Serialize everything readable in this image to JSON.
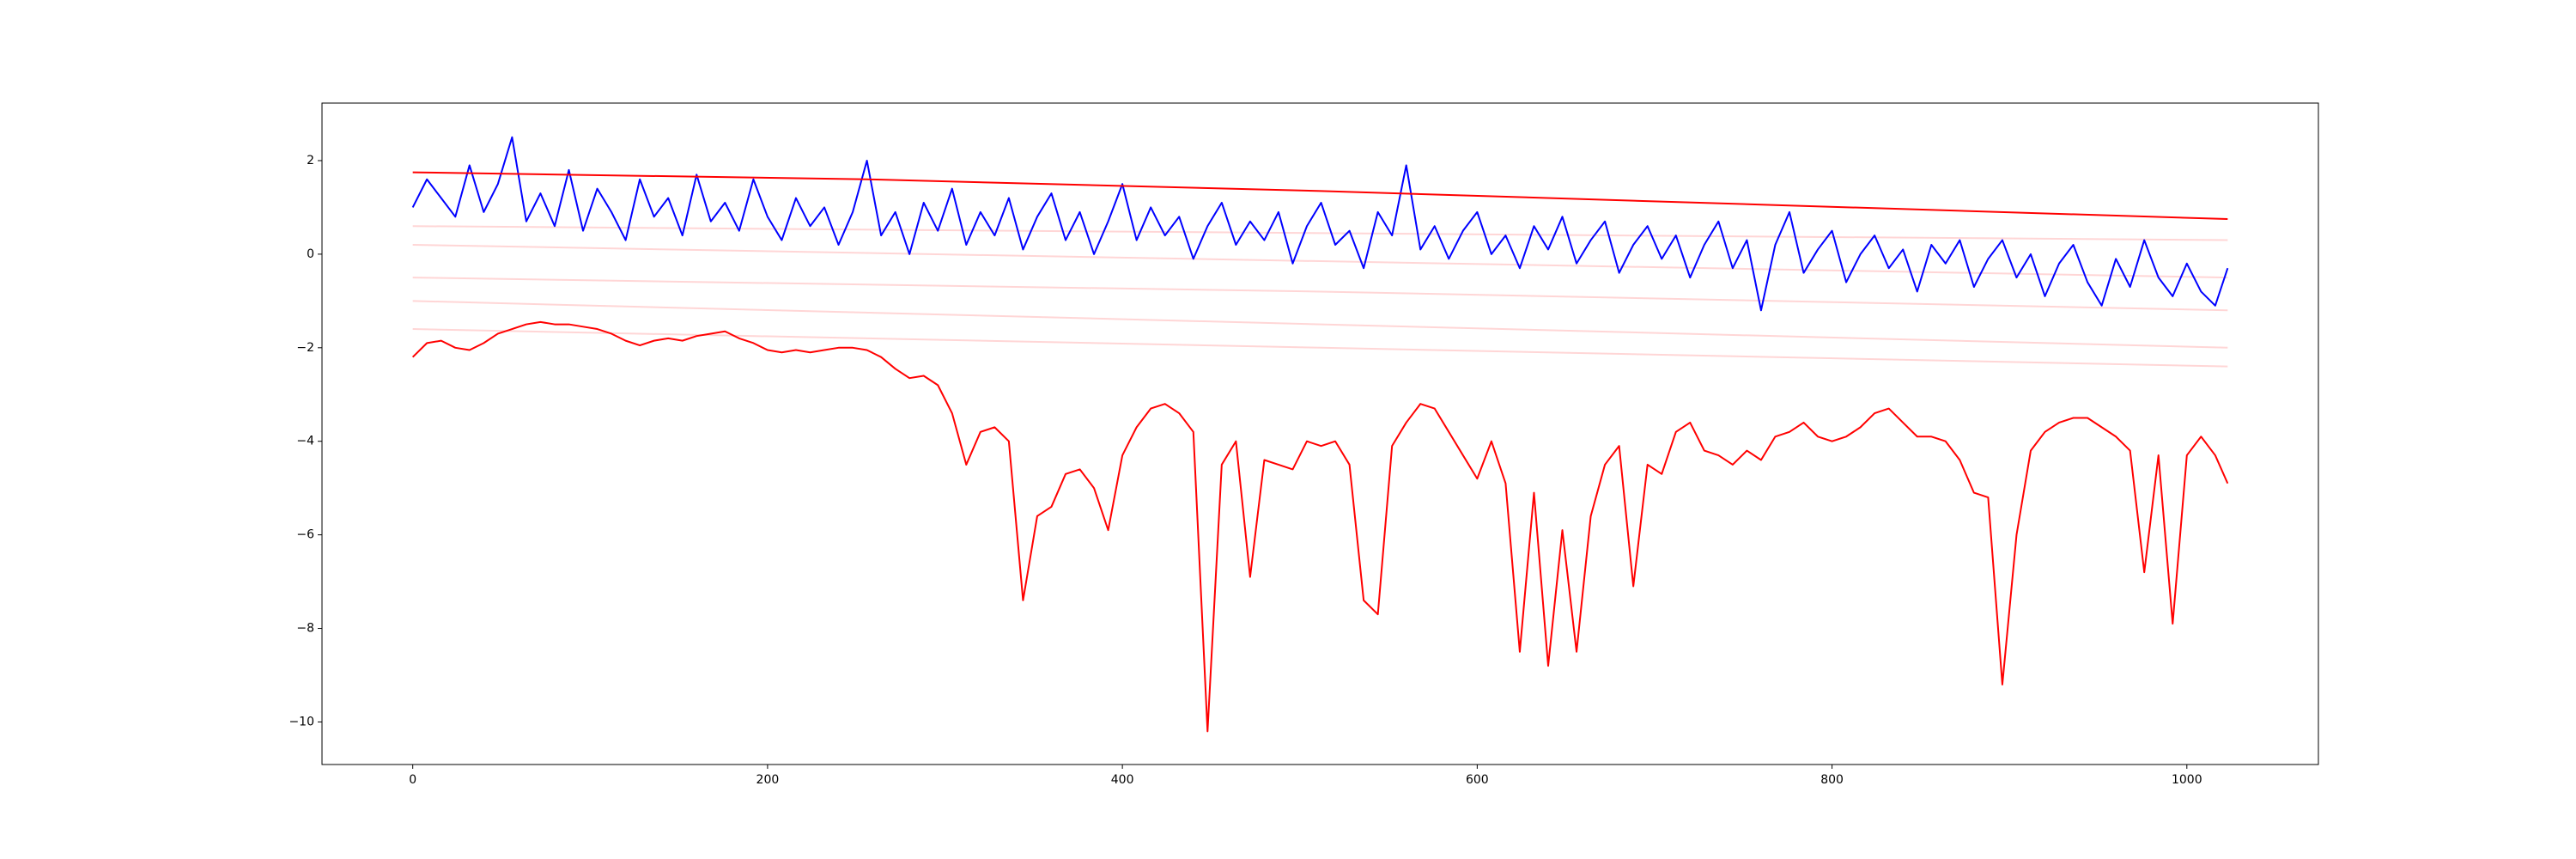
{
  "chart_data": {
    "type": "line",
    "xlim": [
      -51.15,
      1074.15
    ],
    "ylim": [
      -10.91,
      3.23
    ],
    "xticks": [
      0,
      200,
      400,
      600,
      800,
      1000
    ],
    "yticks": [
      {
        "value": -10,
        "label": "−10"
      },
      {
        "value": -8,
        "label": "−8"
      },
      {
        "value": -6,
        "label": "−6"
      },
      {
        "value": -4,
        "label": "−4"
      },
      {
        "value": -2,
        "label": "−2"
      },
      0,
      2
    ],
    "x": [
      0,
      8,
      16,
      24,
      32,
      40,
      48,
      56,
      64,
      72,
      80,
      88,
      96,
      104,
      112,
      120,
      128,
      136,
      144,
      152,
      160,
      168,
      176,
      184,
      192,
      200,
      208,
      216,
      224,
      232,
      240,
      248,
      256,
      264,
      272,
      280,
      288,
      296,
      304,
      312,
      320,
      328,
      336,
      344,
      352,
      360,
      368,
      376,
      384,
      392,
      400,
      408,
      416,
      424,
      432,
      440,
      448,
      456,
      464,
      472,
      480,
      488,
      496,
      504,
      512,
      520,
      528,
      536,
      544,
      552,
      560,
      568,
      576,
      584,
      592,
      600,
      608,
      616,
      624,
      632,
      640,
      648,
      656,
      664,
      672,
      680,
      688,
      696,
      704,
      712,
      720,
      728,
      736,
      744,
      752,
      760,
      768,
      776,
      784,
      792,
      800,
      808,
      816,
      824,
      832,
      840,
      848,
      856,
      864,
      872,
      880,
      888,
      896,
      904,
      912,
      920,
      928,
      936,
      944,
      952,
      960,
      968,
      976,
      984,
      992,
      1000,
      1008,
      1016,
      1023
    ],
    "series": [
      {
        "color": "#ffd6d6",
        "x": [
          0,
          512,
          1023
        ],
        "values": [
          0.6,
          0.45,
          0.3
        ]
      },
      {
        "color": "#ffd6d6",
        "x": [
          0,
          512,
          1023
        ],
        "values": [
          0.2,
          -0.15,
          -0.5
        ]
      },
      {
        "color": "#ffd6d6",
        "x": [
          0,
          512,
          1023
        ],
        "values": [
          -0.5,
          -0.8,
          -1.2
        ]
      },
      {
        "color": "#ffd6d6",
        "x": [
          0,
          512,
          1023
        ],
        "values": [
          -1.0,
          -1.5,
          -2.0
        ]
      },
      {
        "color": "#ffd6d6",
        "x": [
          0,
          512,
          1023
        ],
        "values": [
          -1.6,
          -2.0,
          -2.4
        ]
      },
      {
        "color": "#0000ff",
        "values": [
          1.0,
          1.6,
          1.2,
          0.8,
          1.9,
          0.9,
          1.5,
          2.5,
          0.7,
          1.3,
          0.6,
          1.8,
          0.5,
          1.4,
          0.9,
          0.3,
          1.6,
          0.8,
          1.2,
          0.4,
          1.7,
          0.7,
          1.1,
          0.5,
          1.6,
          0.8,
          0.3,
          1.2,
          0.6,
          1.0,
          0.2,
          0.9,
          2.0,
          0.4,
          0.9,
          0.0,
          1.1,
          0.5,
          1.4,
          0.2,
          0.9,
          0.4,
          1.2,
          0.1,
          0.8,
          1.3,
          0.3,
          0.9,
          0.0,
          0.7,
          1.5,
          0.3,
          1.0,
          0.4,
          0.8,
          -0.1,
          0.6,
          1.1,
          0.2,
          0.7,
          0.3,
          0.9,
          -0.2,
          0.6,
          1.1,
          0.2,
          0.5,
          -0.3,
          0.9,
          0.4,
          1.9,
          0.1,
          0.6,
          -0.1,
          0.5,
          0.9,
          0.0,
          0.4,
          -0.3,
          0.6,
          0.1,
          0.8,
          -0.2,
          0.3,
          0.7,
          -0.4,
          0.2,
          0.6,
          -0.1,
          0.4,
          -0.5,
          0.2,
          0.7,
          -0.3,
          0.3,
          -1.2,
          0.2,
          0.9,
          -0.4,
          0.1,
          0.5,
          -0.6,
          0.0,
          0.4,
          -0.3,
          0.1,
          -0.8,
          0.2,
          -0.2,
          0.3,
          -0.7,
          -0.1,
          0.3,
          -0.5,
          0.0,
          -0.9,
          -0.2,
          0.2,
          -0.6,
          -1.1,
          -0.1,
          -0.7,
          0.3,
          -0.5,
          -0.9,
          -0.2,
          -0.8,
          -1.1,
          -0.3
        ]
      },
      {
        "color": "#ff0000",
        "x": [
          0,
          256,
          512,
          768,
          1023
        ],
        "values": [
          1.75,
          1.6,
          1.35,
          1.05,
          0.75
        ]
      },
      {
        "color": "#ff0000",
        "values": [
          -2.2,
          -1.9,
          -1.85,
          -2.0,
          -2.05,
          -1.9,
          -1.7,
          -1.6,
          -1.5,
          -1.45,
          -1.5,
          -1.5,
          -1.55,
          -1.6,
          -1.7,
          -1.85,
          -1.95,
          -1.85,
          -1.8,
          -1.85,
          -1.75,
          -1.7,
          -1.65,
          -1.8,
          -1.9,
          -2.05,
          -2.1,
          -2.05,
          -2.1,
          -2.05,
          -2.0,
          -2.0,
          -2.05,
          -2.2,
          -2.45,
          -2.65,
          -2.6,
          -2.8,
          -3.4,
          -4.5,
          -3.8,
          -3.7,
          -4.0,
          -7.4,
          -5.6,
          -5.4,
          -4.7,
          -4.6,
          -5.0,
          -5.9,
          -4.3,
          -3.7,
          -3.3,
          -3.2,
          -3.4,
          -3.8,
          -10.2,
          -4.5,
          -4.0,
          -6.9,
          -4.4,
          -4.5,
          -4.6,
          -4.0,
          -4.1,
          -4.0,
          -4.5,
          -7.4,
          -7.7,
          -4.1,
          -3.6,
          -3.2,
          -3.3,
          -3.8,
          -4.3,
          -4.8,
          -4.0,
          -4.9,
          -8.5,
          -5.1,
          -8.8,
          -5.9,
          -8.5,
          -5.6,
          -4.5,
          -4.1,
          -7.1,
          -4.5,
          -4.7,
          -3.8,
          -3.6,
          -4.2,
          -4.3,
          -4.5,
          -4.2,
          -4.4,
          -3.9,
          -3.8,
          -3.6,
          -3.9,
          -4.0,
          -3.9,
          -3.7,
          -3.4,
          -3.3,
          -3.6,
          -3.9,
          -3.9,
          -4.0,
          -4.4,
          -5.1,
          -5.2,
          -9.2,
          -6.0,
          -4.2,
          -3.8,
          -3.6,
          -3.5,
          -3.5,
          -3.7,
          -3.9,
          -4.2,
          -6.8,
          -4.3,
          -7.9,
          -4.3,
          -3.9,
          -4.3,
          -4.9
        ]
      }
    ]
  }
}
